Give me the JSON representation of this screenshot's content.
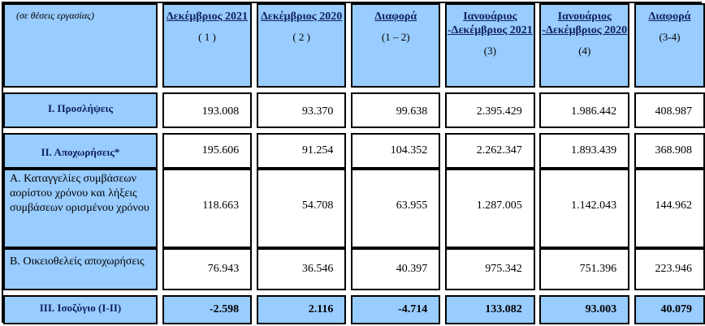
{
  "table": {
    "caption": "(σε θέσεις εργασίας)",
    "headers": [
      {
        "title": "Δεκέμβριος 2021",
        "note": "( 1 )"
      },
      {
        "title": "Δεκέμβριος 2020",
        "note": "( 2 )"
      },
      {
        "title": "Διαφορά",
        "note": "(1 – 2)"
      },
      {
        "title": "Ιανουάριος -Δεκέμβριος 2021",
        "note": "(3)"
      },
      {
        "title": "Ιανουάριος -Δεκέμβριος 2020",
        "note": "(4)"
      },
      {
        "title": "Διαφορά",
        "note": "(3-4)"
      }
    ],
    "rows": [
      {
        "label": "Ι. Προσλήψεις",
        "values": [
          "193.008",
          "93.370",
          "99.638",
          "2.395.429",
          "1.986.442",
          "408.987"
        ]
      },
      {
        "label": "ΙΙ. Αποχωρήσεις*",
        "values": [
          "195.606",
          "91.254",
          "104.352",
          "2.262.347",
          "1.893.439",
          "368.908"
        ]
      },
      {
        "label": "Α. Καταγγελίες συμβάσεων αορίστου χρόνου και λήξεις συμβάσεων ορισμένου χρόνου",
        "values": [
          "118.663",
          "54.708",
          "63.955",
          "1.287.005",
          "1.142.043",
          "144.962"
        ]
      },
      {
        "label": "Β. Οικειοθελείς αποχωρήσεις",
        "values": [
          "76.943",
          "36.546",
          "40.397",
          "975.342",
          "751.396",
          "223.946"
        ]
      },
      {
        "label": "ΙΙΙ. Ισοζύγιο (Ι-ΙΙ)",
        "values": [
          "-2.598",
          "2.116",
          "-4.714",
          "133.082",
          "93.003",
          "40.079"
        ]
      }
    ]
  }
}
